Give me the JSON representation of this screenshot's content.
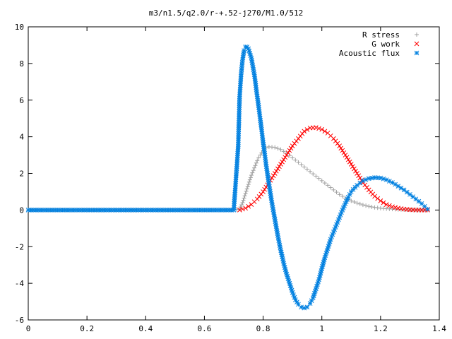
{
  "chart_data": {
    "type": "scatter",
    "title": "m3/n1.5/q2.0/r-+.52-j270/M1.0/512",
    "xlabel": "",
    "ylabel": "",
    "xlim": [
      0,
      1.4
    ],
    "ylim": [
      -6,
      10
    ],
    "x_ticks": [
      "0",
      "0.2",
      "0.4",
      "0.6",
      "0.8",
      "1",
      "1.2",
      "1.4"
    ],
    "y_ticks": [
      "10",
      "8",
      "6",
      "4",
      "2",
      "0",
      "-2",
      "-4",
      "-6"
    ],
    "grid": false,
    "legend_position": "top-right",
    "series": [
      {
        "name": "R stress",
        "marker": "plus",
        "color": "#a0a0a0",
        "points": [
          [
            0.0,
            0
          ],
          [
            0.1,
            0
          ],
          [
            0.2,
            0
          ],
          [
            0.3,
            0
          ],
          [
            0.4,
            0
          ],
          [
            0.5,
            0
          ],
          [
            0.6,
            0
          ],
          [
            0.7,
            0
          ],
          [
            0.72,
            0.05
          ],
          [
            0.73,
            0.4
          ],
          [
            0.74,
            0.9
          ],
          [
            0.75,
            1.4
          ],
          [
            0.76,
            1.9
          ],
          [
            0.77,
            2.3
          ],
          [
            0.78,
            2.7
          ],
          [
            0.79,
            3.0
          ],
          [
            0.8,
            3.25
          ],
          [
            0.81,
            3.4
          ],
          [
            0.82,
            3.45
          ],
          [
            0.84,
            3.42
          ],
          [
            0.86,
            3.3
          ],
          [
            0.88,
            3.1
          ],
          [
            0.9,
            2.85
          ],
          [
            0.92,
            2.6
          ],
          [
            0.94,
            2.35
          ],
          [
            0.96,
            2.1
          ],
          [
            0.98,
            1.85
          ],
          [
            1.0,
            1.6
          ],
          [
            1.02,
            1.35
          ],
          [
            1.04,
            1.1
          ],
          [
            1.06,
            0.85
          ],
          [
            1.08,
            0.65
          ],
          [
            1.1,
            0.5
          ],
          [
            1.12,
            0.38
          ],
          [
            1.14,
            0.28
          ],
          [
            1.16,
            0.2
          ],
          [
            1.18,
            0.14
          ],
          [
            1.2,
            0.1
          ],
          [
            1.22,
            0.07
          ],
          [
            1.24,
            0.05
          ],
          [
            1.26,
            0.03
          ],
          [
            1.28,
            0.02
          ],
          [
            1.3,
            0.01
          ],
          [
            1.32,
            0.01
          ],
          [
            1.34,
            0.0
          ],
          [
            1.36,
            0.0
          ]
        ]
      },
      {
        "name": "G work",
        "marker": "cross",
        "color": "#ff0000",
        "points": [
          [
            0.72,
            0.0
          ],
          [
            0.74,
            0.1
          ],
          [
            0.76,
            0.3
          ],
          [
            0.78,
            0.6
          ],
          [
            0.8,
            1.0
          ],
          [
            0.82,
            1.5
          ],
          [
            0.84,
            2.0
          ],
          [
            0.86,
            2.5
          ],
          [
            0.88,
            3.0
          ],
          [
            0.9,
            3.5
          ],
          [
            0.92,
            3.9
          ],
          [
            0.94,
            4.3
          ],
          [
            0.96,
            4.48
          ],
          [
            0.98,
            4.5
          ],
          [
            1.0,
            4.4
          ],
          [
            1.02,
            4.2
          ],
          [
            1.04,
            3.9
          ],
          [
            1.06,
            3.5
          ],
          [
            1.08,
            3.0
          ],
          [
            1.1,
            2.5
          ],
          [
            1.12,
            2.0
          ],
          [
            1.14,
            1.5
          ],
          [
            1.16,
            1.1
          ],
          [
            1.18,
            0.75
          ],
          [
            1.2,
            0.5
          ],
          [
            1.22,
            0.3
          ],
          [
            1.24,
            0.18
          ],
          [
            1.26,
            0.1
          ],
          [
            1.28,
            0.05
          ],
          [
            1.3,
            0.02
          ],
          [
            1.32,
            0.0
          ],
          [
            1.34,
            0.0
          ],
          [
            1.36,
            0.0
          ]
        ]
      },
      {
        "name": "Acoustic flux",
        "marker": "star",
        "color": "#0080e0",
        "points": [
          [
            0.0,
            0
          ],
          [
            0.05,
            0
          ],
          [
            0.1,
            0
          ],
          [
            0.15,
            0
          ],
          [
            0.2,
            0
          ],
          [
            0.25,
            0
          ],
          [
            0.3,
            0
          ],
          [
            0.35,
            0
          ],
          [
            0.4,
            0
          ],
          [
            0.45,
            0
          ],
          [
            0.5,
            0
          ],
          [
            0.55,
            0
          ],
          [
            0.6,
            0
          ],
          [
            0.65,
            0
          ],
          [
            0.7,
            0
          ],
          [
            0.715,
            3.45
          ],
          [
            0.72,
            6.2
          ],
          [
            0.725,
            7.4
          ],
          [
            0.73,
            8.2
          ],
          [
            0.735,
            8.7
          ],
          [
            0.74,
            8.9
          ],
          [
            0.745,
            8.9
          ],
          [
            0.75,
            8.8
          ],
          [
            0.76,
            8.3
          ],
          [
            0.77,
            7.4
          ],
          [
            0.78,
            6.2
          ],
          [
            0.79,
            5.0
          ],
          [
            0.8,
            3.7
          ],
          [
            0.81,
            2.5
          ],
          [
            0.82,
            1.4
          ],
          [
            0.83,
            0.4
          ],
          [
            0.84,
            -0.5
          ],
          [
            0.85,
            -1.4
          ],
          [
            0.86,
            -2.2
          ],
          [
            0.87,
            -2.9
          ],
          [
            0.88,
            -3.5
          ],
          [
            0.89,
            -4.0
          ],
          [
            0.9,
            -4.5
          ],
          [
            0.91,
            -4.9
          ],
          [
            0.92,
            -5.15
          ],
          [
            0.93,
            -5.3
          ],
          [
            0.94,
            -5.35
          ],
          [
            0.95,
            -5.3
          ],
          [
            0.96,
            -5.1
          ],
          [
            0.97,
            -4.8
          ],
          [
            0.98,
            -4.3
          ],
          [
            0.99,
            -3.8
          ],
          [
            1.0,
            -3.2
          ],
          [
            1.01,
            -2.6
          ],
          [
            1.02,
            -2.1
          ],
          [
            1.03,
            -1.6
          ],
          [
            1.04,
            -1.2
          ],
          [
            1.05,
            -0.8
          ],
          [
            1.06,
            -0.4
          ],
          [
            1.07,
            0.0
          ],
          [
            1.08,
            0.35
          ],
          [
            1.09,
            0.7
          ],
          [
            1.1,
            1.0
          ],
          [
            1.12,
            1.35
          ],
          [
            1.14,
            1.6
          ],
          [
            1.16,
            1.72
          ],
          [
            1.18,
            1.77
          ],
          [
            1.2,
            1.75
          ],
          [
            1.22,
            1.65
          ],
          [
            1.24,
            1.5
          ],
          [
            1.26,
            1.3
          ],
          [
            1.28,
            1.1
          ],
          [
            1.3,
            0.85
          ],
          [
            1.32,
            0.6
          ],
          [
            1.34,
            0.35
          ],
          [
            1.35,
            0.2
          ],
          [
            1.36,
            0.05
          ]
        ]
      }
    ]
  }
}
